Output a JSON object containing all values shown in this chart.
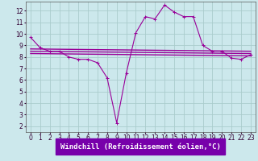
{
  "background_color": "#cce8ec",
  "label_band_color": "#7700aa",
  "grid_color": "#aacccc",
  "line_color": "#990099",
  "xlabel": "Windchill (Refroidissement éolien,°C)",
  "xlim": [
    -0.5,
    23.5
  ],
  "ylim": [
    1.5,
    12.8
  ],
  "xticks": [
    0,
    1,
    2,
    3,
    4,
    5,
    6,
    7,
    8,
    9,
    10,
    11,
    12,
    13,
    14,
    15,
    16,
    17,
    18,
    19,
    20,
    21,
    22,
    23
  ],
  "yticks": [
    2,
    3,
    4,
    5,
    6,
    7,
    8,
    9,
    10,
    11,
    12
  ],
  "series": [
    {
      "x": [
        0,
        1,
        2,
        3,
        4,
        5,
        6,
        7,
        8,
        9,
        10,
        11,
        12,
        13,
        14,
        15,
        16,
        17,
        18,
        19,
        20,
        21,
        22,
        23
      ],
      "y": [
        9.7,
        8.8,
        8.5,
        8.5,
        8.0,
        7.8,
        7.8,
        7.5,
        6.2,
        2.3,
        6.6,
        10.1,
        11.5,
        11.3,
        12.5,
        11.9,
        11.5,
        11.5,
        9.0,
        8.5,
        8.5,
        7.9,
        7.8,
        8.2
      ],
      "marker": "+"
    },
    {
      "x": [
        0,
        23
      ],
      "y": [
        8.7,
        8.5
      ],
      "marker": null
    },
    {
      "x": [
        0,
        23
      ],
      "y": [
        8.5,
        8.3
      ],
      "marker": null
    },
    {
      "x": [
        0,
        23
      ],
      "y": [
        8.3,
        8.1
      ],
      "marker": null
    }
  ],
  "tick_fontsize": 5.5,
  "xlabel_fontsize": 6.5
}
